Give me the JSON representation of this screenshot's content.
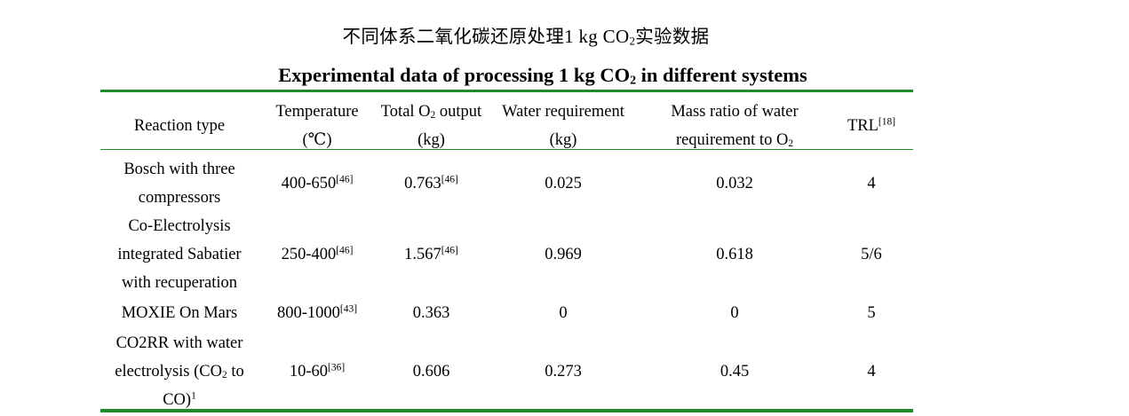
{
  "title_cn_1": "不同体系二氧化碳还原处理",
  "title_cn_2": "1 kg CO",
  "title_cn_sub": "2",
  "title_cn_3": "实验数据",
  "title_en_1": "Experimental data of processing 1 kg CO",
  "title_en_sub": "2",
  "title_en_2": " in different systems",
  "headers": {
    "reaction": "Reaction type",
    "temp_1": "Temperature",
    "temp_2": "(℃)",
    "o2_1a": "Total O",
    "o2_1sub": "2",
    "o2_1b": " output",
    "o2_2": "(kg)",
    "water_1": "Water requirement",
    "water_2": "(kg)",
    "ratio_1": "Mass ratio of water",
    "ratio_2a": "requirement to O",
    "ratio_2sub": "2",
    "trl": "TRL",
    "trl_ref": "[18]"
  },
  "rows": [
    {
      "type_lines": [
        "Bosch with three",
        "compressors"
      ],
      "temp": "400-650",
      "temp_ref": "[46]",
      "o2": "0.763",
      "o2_ref": "[46]",
      "water": "0.025",
      "ratio": "0.032",
      "trl": "4"
    },
    {
      "type_lines": [
        "Co-Electrolysis",
        "integrated Sabatier",
        "with recuperation"
      ],
      "temp": "250-400",
      "temp_ref": "[46]",
      "o2": "1.567",
      "o2_ref": "[46]",
      "water": "0.969",
      "ratio": "0.618",
      "trl": "5/6"
    },
    {
      "type_lines": [
        "MOXIE On Mars"
      ],
      "temp": "800-1000",
      "temp_ref": "[43]",
      "o2": "0.363",
      "o2_ref": "",
      "water": "0",
      "ratio": "0",
      "trl": "5"
    },
    {
      "type_line1": "CO2RR with water",
      "type_line2a": "electrolysis (CO",
      "type_line2sub": "2",
      "type_line2b": " to",
      "type_line3": "CO)",
      "type_line3sup": "1",
      "temp": "10-60",
      "temp_ref": "[36]",
      "o2": "0.606",
      "o2_ref": "",
      "water": "0.273",
      "ratio": "0.45",
      "trl": "4"
    }
  ]
}
